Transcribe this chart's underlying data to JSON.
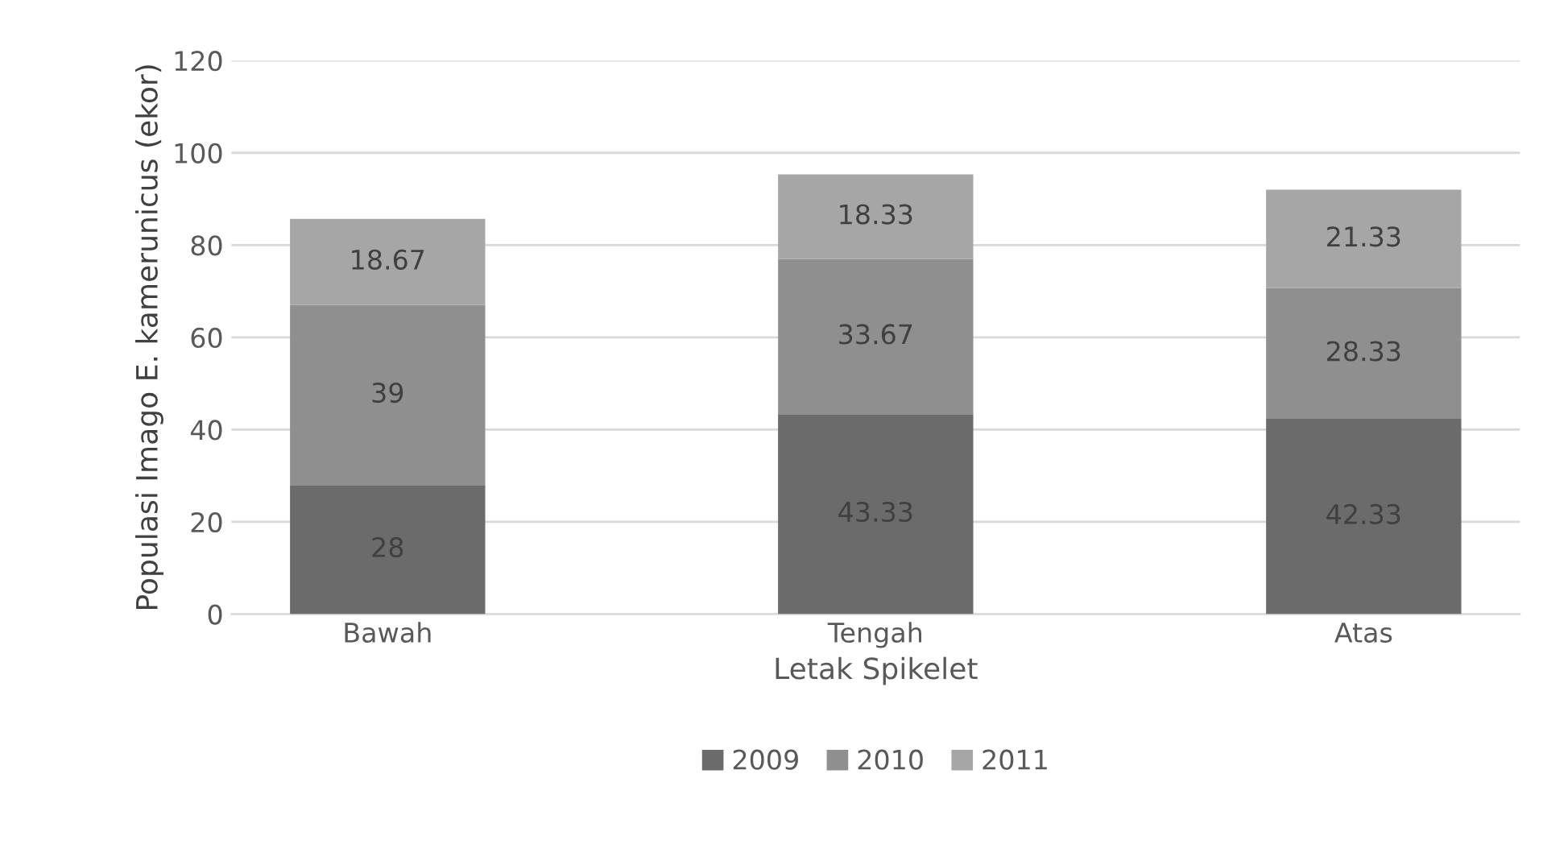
{
  "chart_data": {
    "type": "bar",
    "stacked": true,
    "xlabel": "Letak Spikelet",
    "ylabel": "Populasi Imago E. kamerunicus (ekor)",
    "categories": [
      "Bawah",
      "Tengah",
      "Atas"
    ],
    "series": [
      {
        "name": "2009",
        "color": "#6b6b6b",
        "values": [
          28,
          43.33,
          42.33
        ]
      },
      {
        "name": "2010",
        "color": "#8f8f8f",
        "values": [
          39,
          33.67,
          28.33
        ]
      },
      {
        "name": "2011",
        "color": "#a6a6a6",
        "values": [
          18.67,
          18.33,
          21.33
        ]
      }
    ],
    "ylim": [
      0,
      120
    ],
    "yticks": [
      0,
      20,
      40,
      60,
      80,
      100,
      120
    ],
    "grid": "y",
    "legend": "bottom",
    "data_labels": true
  }
}
